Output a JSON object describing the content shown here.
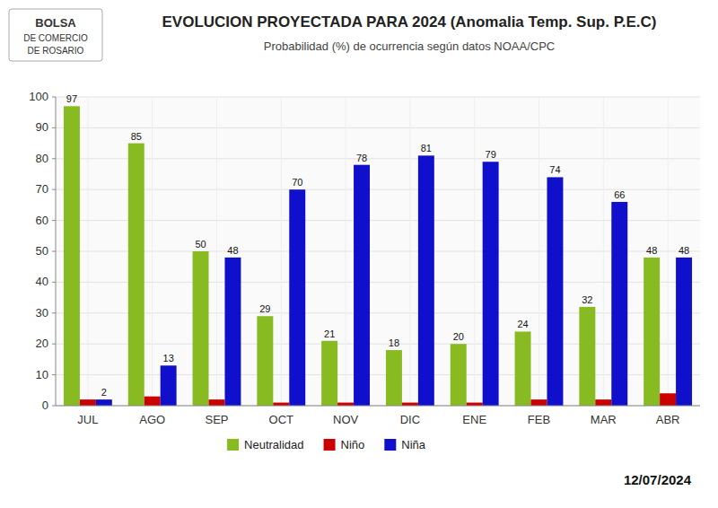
{
  "chart_data": {
    "type": "bar",
    "title": "EVOLUCION PROYECTADA PARA 2024 (Anomalia Temp. Sup. P.E.C)",
    "subtitle": "Probabilidad (%) de ocurrencia según datos NOAA/CPC",
    "annotations": [
      "BOLSA",
      "DE COMERCIO",
      "DE ROSARIO",
      "12/07/2024"
    ],
    "categories": [
      "JUL",
      "AGO",
      "SEP",
      "OCT",
      "NOV",
      "DIC",
      "ENE",
      "FEB",
      "MAR",
      "ABR"
    ],
    "series": [
      {
        "name": "Neutralidad",
        "color": "#88BB22",
        "data_labels": true,
        "values": [
          97,
          85,
          50,
          29,
          21,
          18,
          20,
          24,
          32,
          48
        ]
      },
      {
        "name": "Niño",
        "color": "#CC0000",
        "data_labels": false,
        "values": [
          2,
          3,
          2,
          1,
          1,
          1,
          1,
          2,
          2,
          4
        ]
      },
      {
        "name": "Niña",
        "color": "#1010CC",
        "data_labels": true,
        "values": [
          2,
          13,
          48,
          70,
          78,
          81,
          79,
          74,
          66,
          48
        ]
      }
    ],
    "ylim": [
      0,
      100
    ],
    "yticks": [
      0,
      10,
      20,
      30,
      40,
      50,
      60,
      70,
      80,
      90,
      100
    ],
    "grid": true,
    "legend": "bottom"
  }
}
